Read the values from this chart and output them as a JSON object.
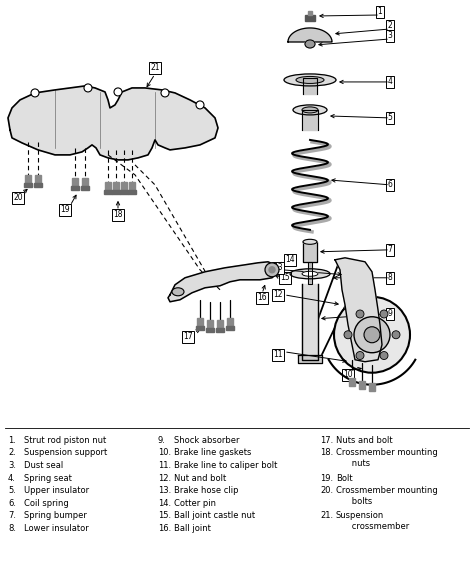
{
  "background_color": "#f5f5f0",
  "legend_col1": [
    [
      "1.",
      "Strut rod piston nut"
    ],
    [
      "2.",
      "Suspension support"
    ],
    [
      "3.",
      "Dust seal"
    ],
    [
      "4.",
      "Spring seat"
    ],
    [
      "5.",
      "Upper insulator"
    ],
    [
      "6.",
      "Coil spring"
    ],
    [
      "7.",
      "Spring bumper"
    ],
    [
      "8.",
      "Lower insulator"
    ]
  ],
  "legend_col2": [
    [
      "9.",
      "Shock absorber"
    ],
    [
      "10.",
      "Brake line gaskets"
    ],
    [
      "11.",
      "Brake line to caliper bolt"
    ],
    [
      "12.",
      "Nut and bolt"
    ],
    [
      "13.",
      "Brake hose clip"
    ],
    [
      "14.",
      "Cotter pin"
    ],
    [
      "15.",
      "Ball joint castle nut"
    ],
    [
      "16.",
      "Ball joint"
    ]
  ],
  "legend_col3": [
    [
      "17.",
      "Nuts and bolt"
    ],
    [
      "18.",
      "Crossmember mounting\n      nuts"
    ],
    [
      "19.",
      "Bolt"
    ],
    [
      "20.",
      "Crossmember mounting\n      bolts"
    ],
    [
      "21.",
      "Suspension\n      crossmember"
    ]
  ],
  "fig_width": 4.74,
  "fig_height": 5.71,
  "dpi": 100
}
